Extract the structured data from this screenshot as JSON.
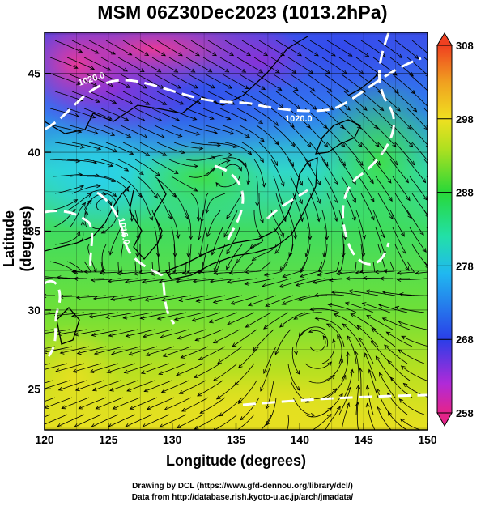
{
  "title": "MSM 06Z30Dec2023 (1013.2hPa)",
  "axes": {
    "xlabel": "Longitude (degrees)",
    "ylabel": "Latitude  (degrees)",
    "xticks": [
      "120",
      "125",
      "130",
      "135",
      "140",
      "145",
      "150"
    ],
    "yticks": [
      "25",
      "30",
      "35",
      "40",
      "45"
    ],
    "xlim": [
      120,
      150
    ],
    "ylim": [
      22.4,
      47.6
    ]
  },
  "colorbar": {
    "ticks": [
      "308",
      "298",
      "288",
      "278",
      "268",
      "258"
    ],
    "range": [
      258,
      308
    ],
    "colors": [
      "#e5248a",
      "#b02ad8",
      "#2a3ee8",
      "#20b8f0",
      "#22e0a8",
      "#28d838",
      "#b0e020",
      "#f0e020",
      "#f0a020",
      "#f04020"
    ]
  },
  "contours": {
    "labels": [
      "1020.0",
      "1020.0",
      "1016.0"
    ]
  },
  "credits": {
    "line1": "Drawing by DCL (https://www.gfd-dennou.org/library/dcl/)",
    "line2": "Data from http://database.rish.kyoto-u.ac.jp/arch/jmadata/"
  }
}
